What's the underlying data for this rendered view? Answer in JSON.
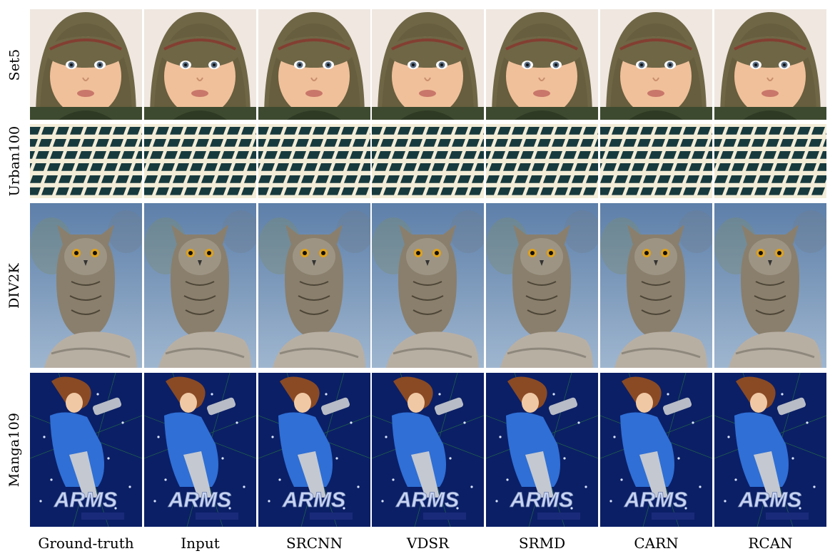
{
  "figure": {
    "rows": [
      {
        "key": "set5",
        "label": "Set5",
        "subject": "baby-with-knit-hat"
      },
      {
        "key": "urban100",
        "label": "Urban100",
        "subject": "building-grid-facade"
      },
      {
        "key": "div2k",
        "label": "DIV2K",
        "subject": "owl-on-rock"
      },
      {
        "key": "manga109",
        "label": "Manga109",
        "subject": "manga-cover-arms"
      }
    ],
    "columns": [
      {
        "key": "gt",
        "label": "Ground-truth"
      },
      {
        "key": "input",
        "label": "Input"
      },
      {
        "key": "srcnn",
        "label": "SRCNN"
      },
      {
        "key": "vdsr",
        "label": "VDSR"
      },
      {
        "key": "srmd",
        "label": "SRMD"
      },
      {
        "key": "carn",
        "label": "CARN"
      },
      {
        "key": "rcan",
        "label": "RCAN"
      }
    ],
    "manga_title": "ARMS",
    "colors": {
      "set5_background": "#efe7e0",
      "hat": "#6f6646",
      "skin": "#f0c09a",
      "grid_glass": "#173a3e",
      "grid_frame": "#f3ecd7",
      "sky_top": "#5d7fa9",
      "sky_bottom": "#9fb6cf",
      "owl": "#8a7f6c",
      "rock": "#b8afa3",
      "manga_bg": "#0b1f66",
      "manga_suit": "#2f6fd6",
      "manga_title": "#c9d4f2"
    }
  }
}
